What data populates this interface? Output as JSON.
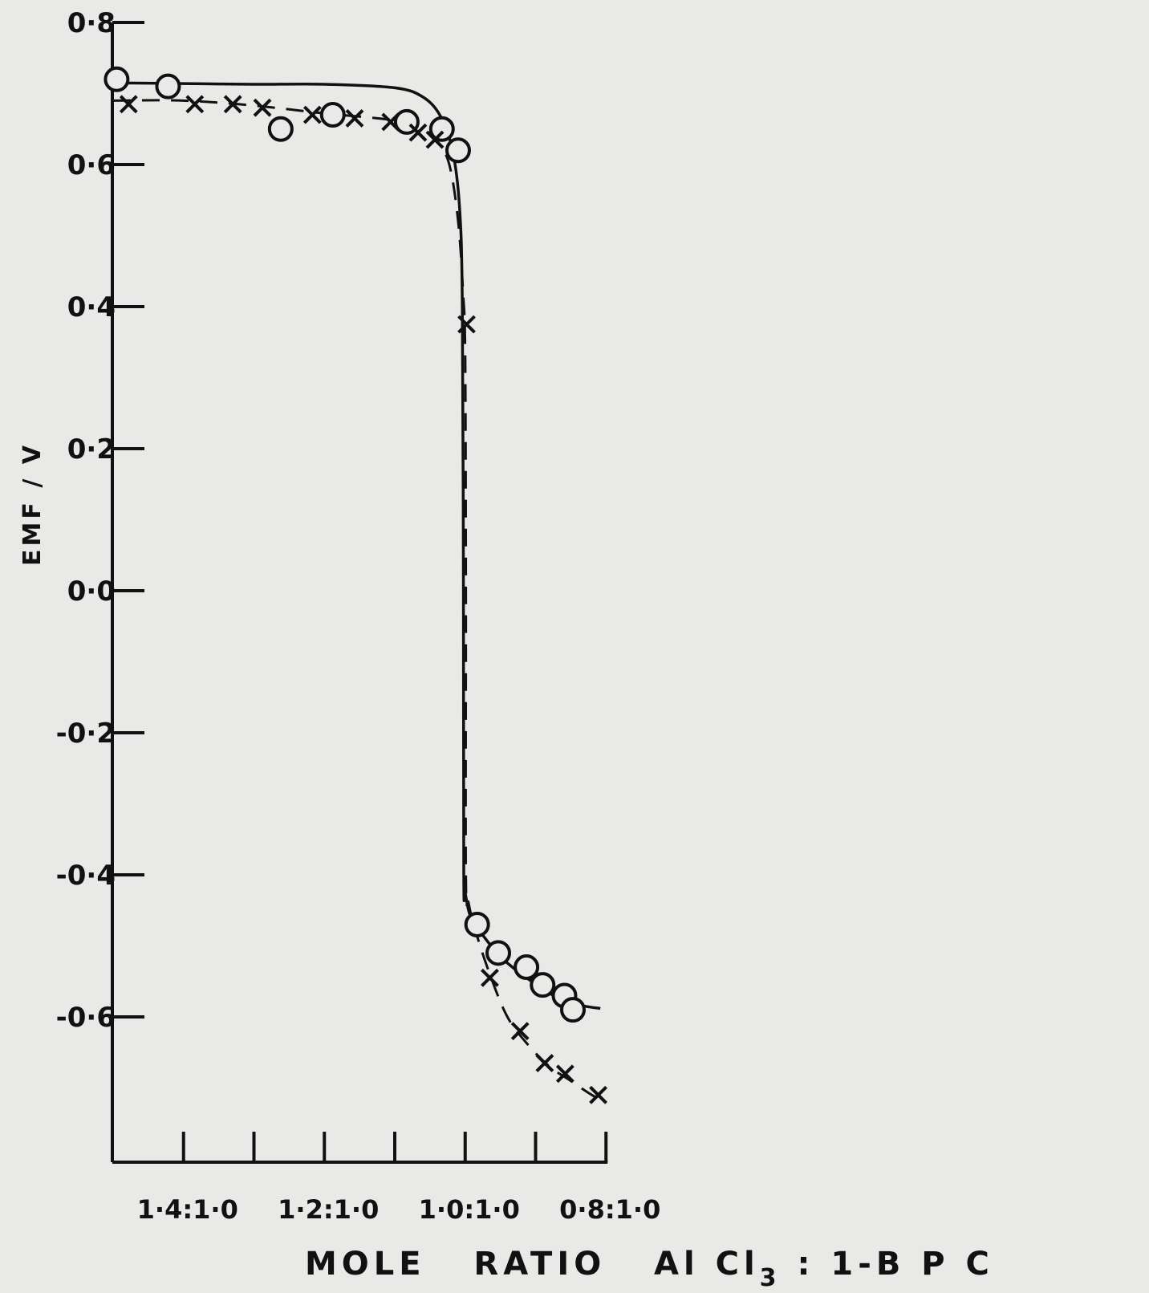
{
  "chart_data": {
    "type": "line",
    "xlabel": "MOLE RATIO AlCl3 : 1-BPC",
    "xlabel_parts": [
      "MOLE",
      "RATIO",
      "Al Cl",
      "3",
      ":",
      "1-B P C"
    ],
    "ylabel": "EMF / V",
    "x_scale": "reversed",
    "xlim": [
      1.5,
      0.8
    ],
    "ylim": [
      -0.8,
      0.8
    ],
    "x_ticks": [
      {
        "value": 1.4,
        "label": "1·4:1·0"
      },
      {
        "value": 1.2,
        "label": "1·2:1·0"
      },
      {
        "value": 1.0,
        "label": "1·0:1·0"
      },
      {
        "value": 0.8,
        "label": "0·8:1·0"
      }
    ],
    "x_minor_ticks": [
      1.3,
      1.1,
      0.9
    ],
    "y_ticks": [
      {
        "value": 0.8,
        "label": "0·8"
      },
      {
        "value": 0.6,
        "label": "0·6"
      },
      {
        "value": 0.4,
        "label": "0·4"
      },
      {
        "value": 0.2,
        "label": "0·2"
      },
      {
        "value": 0.0,
        "label": "0·0"
      },
      {
        "value": -0.2,
        "label": "-0·2"
      },
      {
        "value": -0.4,
        "label": "-0·4"
      },
      {
        "value": -0.6,
        "label": "-0·6"
      }
    ],
    "grid": false,
    "series": [
      {
        "marker": "circle",
        "line_style": "solid",
        "color": "#111111",
        "points": [
          {
            "x": 1.495,
            "y": 0.72
          },
          {
            "x": 1.422,
            "y": 0.71
          },
          {
            "x": 1.262,
            "y": 0.65
          },
          {
            "x": 1.188,
            "y": 0.67
          },
          {
            "x": 1.083,
            "y": 0.66
          },
          {
            "x": 1.033,
            "y": 0.65
          },
          {
            "x": 1.01,
            "y": 0.62
          },
          {
            "x": 0.983,
            "y": -0.47
          },
          {
            "x": 0.953,
            "y": -0.51
          },
          {
            "x": 0.913,
            "y": -0.53
          },
          {
            "x": 0.89,
            "y": -0.555
          },
          {
            "x": 0.859,
            "y": -0.57
          },
          {
            "x": 0.847,
            "y": -0.59
          }
        ]
      },
      {
        "marker": "cross",
        "line_style": "dashed",
        "color": "#111111",
        "points": [
          {
            "x": 1.478,
            "y": 0.685
          },
          {
            "x": 1.384,
            "y": 0.685
          },
          {
            "x": 1.33,
            "y": 0.685
          },
          {
            "x": 1.288,
            "y": 0.68
          },
          {
            "x": 1.217,
            "y": 0.67
          },
          {
            "x": 1.157,
            "y": 0.665
          },
          {
            "x": 1.106,
            "y": 0.66
          },
          {
            "x": 1.067,
            "y": 0.645
          },
          {
            "x": 1.043,
            "y": 0.635
          },
          {
            "x": 0.998,
            "y": 0.375
          },
          {
            "x": 0.965,
            "y": -0.545
          },
          {
            "x": 0.922,
            "y": -0.62
          },
          {
            "x": 0.887,
            "y": -0.665
          },
          {
            "x": 0.858,
            "y": -0.68
          },
          {
            "x": 0.811,
            "y": -0.71
          }
        ]
      }
    ]
  }
}
